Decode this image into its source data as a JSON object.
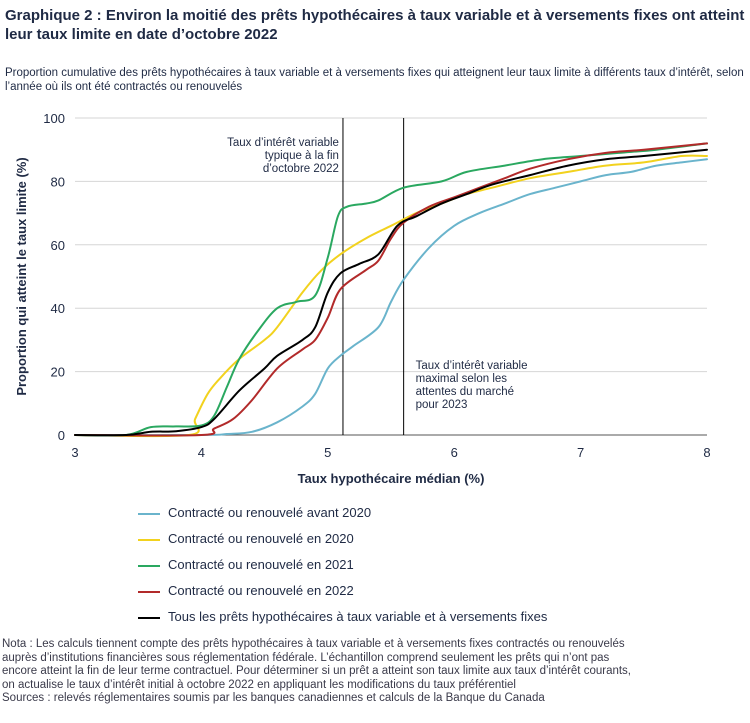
{
  "title": "Graphique 2 : Environ la moitié des prêts hypothécaires à taux variable et à versements fixes ont atteint leur taux limite en date d’octobre 2022",
  "subtitle": "Proportion cumulative des prêts hypothécaires à taux variable et à versements fixes qui atteignent leur taux limite à différents taux d’intérêt, selon l’année où ils ont été contractés ou renouvelés",
  "notes": [
    "Nota : Les calculs tiennent compte des prêts hypothécaires à taux variable et à versements fixes contractés ou renouvelés",
    "auprès d’institutions financières sous réglementation fédérale. L’échantillon comprend seulement les prêts qui n’ont pas",
    "encore atteint la fin de leur terme contractuel. Pour déterminer si un prêt a atteint son taux limite aux taux d’intérêt courants,",
    "on actualise le taux d’intérêt initial à octobre 2022 en appliquant les modifications du taux préférentiel",
    "Sources : relevés réglementaires soumis par les banques canadiennes et calculs de la Banque du Canada"
  ],
  "chart_data": {
    "type": "line",
    "xlabel": "Taux hypothécaire médian (%)",
    "ylabel": "Proportion qui atteint le taux limite (%)",
    "xlim": [
      3,
      8
    ],
    "ylim": [
      0,
      100
    ],
    "xticks": [
      "3",
      "4",
      "5",
      "6",
      "7",
      "8"
    ],
    "yticks": [
      "0",
      "20",
      "40",
      "60",
      "80",
      "100"
    ],
    "grid": "y",
    "legend_position": "bottom",
    "vlines": [
      {
        "x": 5.12,
        "label": [
          "Taux d’intérêt variable",
          "typique à la fin",
          "d’octobre 2022"
        ]
      },
      {
        "x": 5.6,
        "label": [
          "Taux d’intérêt variable",
          "maximal selon les",
          "attentes du marché",
          "pour 2023"
        ]
      }
    ],
    "series": [
      {
        "name": "Contracté ou renouvelé avant 2020",
        "color": "#6ab4cc",
        "points": [
          [
            3,
            0
          ],
          [
            4,
            0
          ],
          [
            4.2,
            0.3
          ],
          [
            4.4,
            1
          ],
          [
            4.6,
            4
          ],
          [
            4.8,
            9
          ],
          [
            4.9,
            13
          ],
          [
            5,
            21
          ],
          [
            5.1,
            25
          ],
          [
            5.2,
            28
          ],
          [
            5.4,
            34
          ],
          [
            5.5,
            42
          ],
          [
            5.6,
            49
          ],
          [
            5.8,
            59
          ],
          [
            6,
            66
          ],
          [
            6.2,
            70
          ],
          [
            6.4,
            73
          ],
          [
            6.6,
            76
          ],
          [
            6.8,
            78
          ],
          [
            7,
            80
          ],
          [
            7.2,
            82
          ],
          [
            7.4,
            83
          ],
          [
            7.6,
            85
          ],
          [
            7.8,
            86
          ],
          [
            8,
            87
          ]
        ]
      },
      {
        "name": "Contracté ou renouvelé en 2020",
        "color": "#f2d21e",
        "points": [
          [
            3,
            0
          ],
          [
            3.9,
            0
          ],
          [
            3.95,
            5
          ],
          [
            4.05,
            13
          ],
          [
            4.15,
            18
          ],
          [
            4.3,
            24
          ],
          [
            4.5,
            30
          ],
          [
            4.6,
            34
          ],
          [
            4.8,
            45
          ],
          [
            4.95,
            52
          ],
          [
            5.1,
            57
          ],
          [
            5.3,
            62
          ],
          [
            5.5,
            66
          ],
          [
            5.7,
            70
          ],
          [
            5.9,
            73
          ],
          [
            6.1,
            76
          ],
          [
            6.3,
            78
          ],
          [
            6.6,
            81
          ],
          [
            6.9,
            83
          ],
          [
            7.2,
            85
          ],
          [
            7.5,
            86
          ],
          [
            7.8,
            88
          ],
          [
            8,
            88
          ]
        ]
      },
      {
        "name": "Contracté ou renouvelé en 2021",
        "color": "#2aa860",
        "points": [
          [
            3,
            0
          ],
          [
            3.4,
            0
          ],
          [
            3.6,
            2.5
          ],
          [
            3.8,
            2.7
          ],
          [
            4,
            3
          ],
          [
            4.1,
            6
          ],
          [
            4.2,
            15
          ],
          [
            4.3,
            24
          ],
          [
            4.45,
            33
          ],
          [
            4.6,
            40
          ],
          [
            4.75,
            42
          ],
          [
            4.9,
            44
          ],
          [
            5,
            56
          ],
          [
            5.08,
            69
          ],
          [
            5.15,
            72
          ],
          [
            5.3,
            73
          ],
          [
            5.4,
            74
          ],
          [
            5.6,
            78
          ],
          [
            5.9,
            80
          ],
          [
            6.1,
            83
          ],
          [
            6.4,
            85
          ],
          [
            6.7,
            87
          ],
          [
            7,
            88
          ],
          [
            7.3,
            89
          ],
          [
            7.6,
            90
          ],
          [
            8,
            92
          ]
        ]
      },
      {
        "name": "Contracté ou renouvelé en 2022",
        "color": "#b22a2a",
        "points": [
          [
            3,
            0
          ],
          [
            4,
            0
          ],
          [
            4.1,
            2
          ],
          [
            4.25,
            5
          ],
          [
            4.4,
            11
          ],
          [
            4.6,
            21
          ],
          [
            4.8,
            27
          ],
          [
            4.9,
            30
          ],
          [
            5,
            37
          ],
          [
            5.1,
            46
          ],
          [
            5.3,
            52
          ],
          [
            5.4,
            55
          ],
          [
            5.5,
            62
          ],
          [
            5.6,
            67
          ],
          [
            5.8,
            72
          ],
          [
            6,
            75
          ],
          [
            6.2,
            78
          ],
          [
            6.4,
            81
          ],
          [
            6.6,
            84
          ],
          [
            6.9,
            87
          ],
          [
            7.2,
            89
          ],
          [
            7.5,
            90
          ],
          [
            8,
            92
          ]
        ]
      },
      {
        "name": "Tous les prêts hypothécaires à taux variable et à versements fixes",
        "color": "#000000",
        "points": [
          [
            3,
            0
          ],
          [
            3.4,
            0
          ],
          [
            3.6,
            1
          ],
          [
            3.8,
            1.2
          ],
          [
            4,
            2.5
          ],
          [
            4.1,
            5
          ],
          [
            4.3,
            14
          ],
          [
            4.5,
            21
          ],
          [
            4.6,
            25
          ],
          [
            4.8,
            30
          ],
          [
            4.9,
            34
          ],
          [
            5,
            45
          ],
          [
            5.1,
            51
          ],
          [
            5.25,
            54
          ],
          [
            5.4,
            57
          ],
          [
            5.55,
            66
          ],
          [
            5.7,
            69
          ],
          [
            5.9,
            73
          ],
          [
            6.1,
            76
          ],
          [
            6.3,
            79
          ],
          [
            6.6,
            82
          ],
          [
            6.9,
            85
          ],
          [
            7.2,
            87
          ],
          [
            7.5,
            88
          ],
          [
            8,
            90
          ]
        ]
      }
    ]
  }
}
